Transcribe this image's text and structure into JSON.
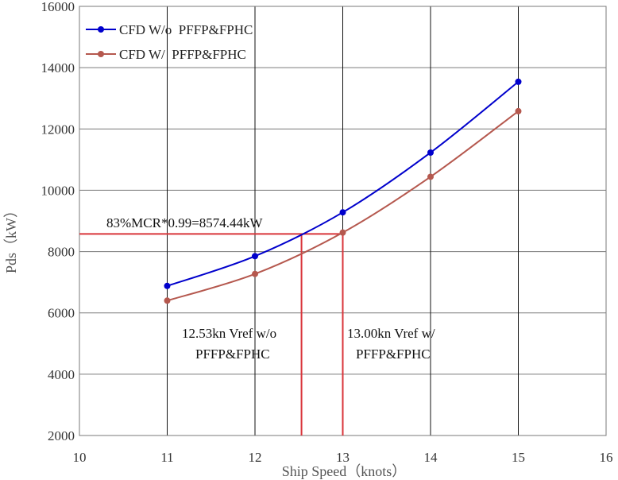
{
  "chart_data": {
    "type": "line",
    "xlabel": "Ship Speed（knots）",
    "ylabel": "Pds（kW）",
    "xlim": [
      10,
      16
    ],
    "ylim": [
      2000,
      16000
    ],
    "xticks": [
      10,
      11,
      12,
      13,
      14,
      15,
      16
    ],
    "yticks": [
      2000,
      4000,
      6000,
      8000,
      10000,
      12000,
      14000,
      16000
    ],
    "grid": "on",
    "legend_position": "top-left",
    "series": [
      {
        "name": "CFD W/o  PFFP&FPHC",
        "color": "#0000cc",
        "x": [
          11,
          12,
          13,
          14,
          15
        ],
        "y": [
          6880,
          7850,
          9280,
          11230,
          13540
        ]
      },
      {
        "name": "CFD W/  PFFP&FPHC",
        "color": "#b5584e",
        "x": [
          11,
          12,
          13,
          14,
          15
        ],
        "y": [
          6400,
          7270,
          8620,
          10440,
          12580
        ]
      }
    ],
    "reference_line": {
      "y": 8574.44,
      "label": "83%MCR*0.99=8574.44kW",
      "color": "#d9343a"
    },
    "intersections": [
      {
        "x": 12.53,
        "label_line1": "12.53kn Vref w/o",
        "label_line2": "PFFP&FPHC"
      },
      {
        "x": 13.0,
        "label_line1": "13.00kn Vref w/",
        "label_line2": "PFFP&FPHC"
      }
    ]
  }
}
